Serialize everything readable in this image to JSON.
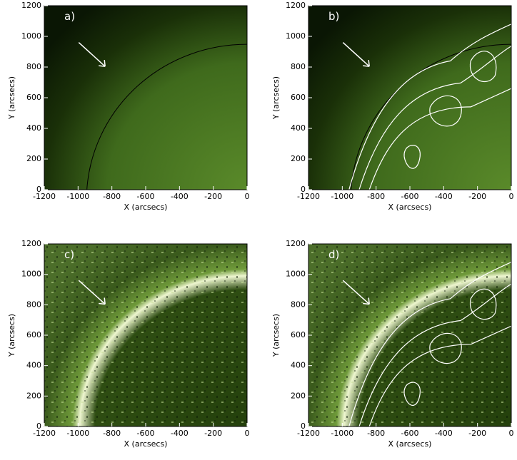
{
  "chart_data": [
    {
      "type": "image",
      "panel_label": "a)",
      "xlabel": "X (arcsecs)",
      "ylabel": "Y (arcsecs)",
      "xlim": [
        -1200,
        0
      ],
      "ylim": [
        0,
        1200
      ],
      "xticks": [
        -1200,
        -1000,
        -800,
        -600,
        -400,
        -200,
        0
      ],
      "yticks": [
        0,
        200,
        400,
        600,
        800,
        1000,
        1200
      ]
    },
    {
      "type": "image",
      "panel_label": "b)",
      "xlabel": "X (arcsecs)",
      "ylabel": "Y (arcsecs)",
      "xlim": [
        -1200,
        0
      ],
      "ylim": [
        0,
        1200
      ],
      "xticks": [
        -1200,
        -1000,
        -800,
        -600,
        -400,
        -200,
        0
      ],
      "yticks": [
        0,
        200,
        400,
        600,
        800,
        1000,
        1200
      ]
    },
    {
      "type": "image",
      "panel_label": "c)",
      "xlabel": "X (arcsecs)",
      "ylabel": "Y (arcsecs)",
      "xlim": [
        -1200,
        0
      ],
      "ylim": [
        0,
        1200
      ],
      "xticks": [
        -1200,
        -1000,
        -800,
        -600,
        -400,
        -200,
        0
      ],
      "yticks": [
        0,
        200,
        400,
        600,
        800,
        1000,
        1200
      ]
    },
    {
      "type": "image",
      "panel_label": "d)",
      "xlabel": "X (arcsecs)",
      "ylabel": "Y (arcsecs)",
      "xlim": [
        -1200,
        0
      ],
      "ylim": [
        0,
        1200
      ],
      "xticks": [
        -1200,
        -1000,
        -800,
        -600,
        -400,
        -200,
        0
      ],
      "yticks": [
        0,
        200,
        400,
        600,
        800,
        1000,
        1200
      ]
    }
  ]
}
